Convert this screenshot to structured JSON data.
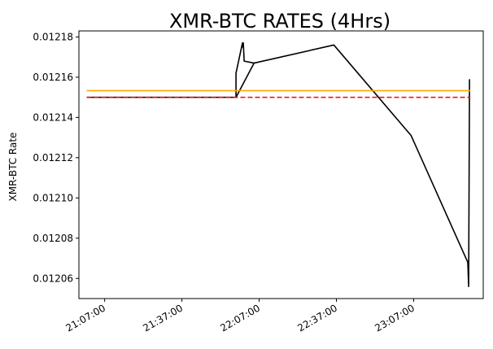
{
  "chart_data": {
    "type": "line",
    "title": "XMR-BTC RATES (4Hrs)",
    "xlabel": "",
    "ylabel": "XMR-BTC Rate",
    "xlim": [
      "20:57:00",
      "23:34:00"
    ],
    "ylim": [
      0.01205,
      0.012183
    ],
    "x_ticks": [
      "21:07:00",
      "21:37:00",
      "22:07:00",
      "22:37:00",
      "23:07:00"
    ],
    "y_ticks": [
      "0.01206",
      "0.01208",
      "0.01210",
      "0.01212",
      "0.01214",
      "0.01216",
      "0.01218"
    ],
    "grid": false,
    "legend": "none",
    "series": [
      {
        "style": "solid",
        "color": "#000000",
        "points": [
          {
            "x": "21:00:00",
            "y": 0.01215
          },
          {
            "x": "21:51:00",
            "y": 0.01215
          },
          {
            "x": "21:58:00",
            "y": 0.01215
          },
          {
            "x": "21:58:00",
            "y": 0.012162
          },
          {
            "x": "22:00:30",
            "y": 0.012177
          },
          {
            "x": "22:00:30",
            "y": 0.012175
          },
          {
            "x": "22:00:50",
            "y": 0.012177
          },
          {
            "x": "22:01:10",
            "y": 0.012168
          },
          {
            "x": "22:05:00",
            "y": 0.012167
          },
          {
            "x": "21:58:00",
            "y": 0.01215
          },
          {
            "x": "22:05:00",
            "y": 0.012167
          },
          {
            "x": "22:36:00",
            "y": 0.012176
          },
          {
            "x": "23:06:00",
            "y": 0.012131
          },
          {
            "x": "23:28:00",
            "y": 0.012068
          },
          {
            "x": "23:28:20",
            "y": 0.012056
          },
          {
            "x": "23:28:40",
            "y": 0.012159
          }
        ]
      },
      {
        "style": "solid",
        "color": "#ffa500",
        "points": [
          {
            "x": "21:00:00",
            "y": 0.0121533
          },
          {
            "x": "23:29:00",
            "y": 0.0121533
          }
        ]
      },
      {
        "style": "dashed",
        "color": "#ff0000",
        "points": [
          {
            "x": "21:00:00",
            "y": 0.01215
          },
          {
            "x": "23:29:00",
            "y": 0.01215
          }
        ]
      }
    ]
  }
}
